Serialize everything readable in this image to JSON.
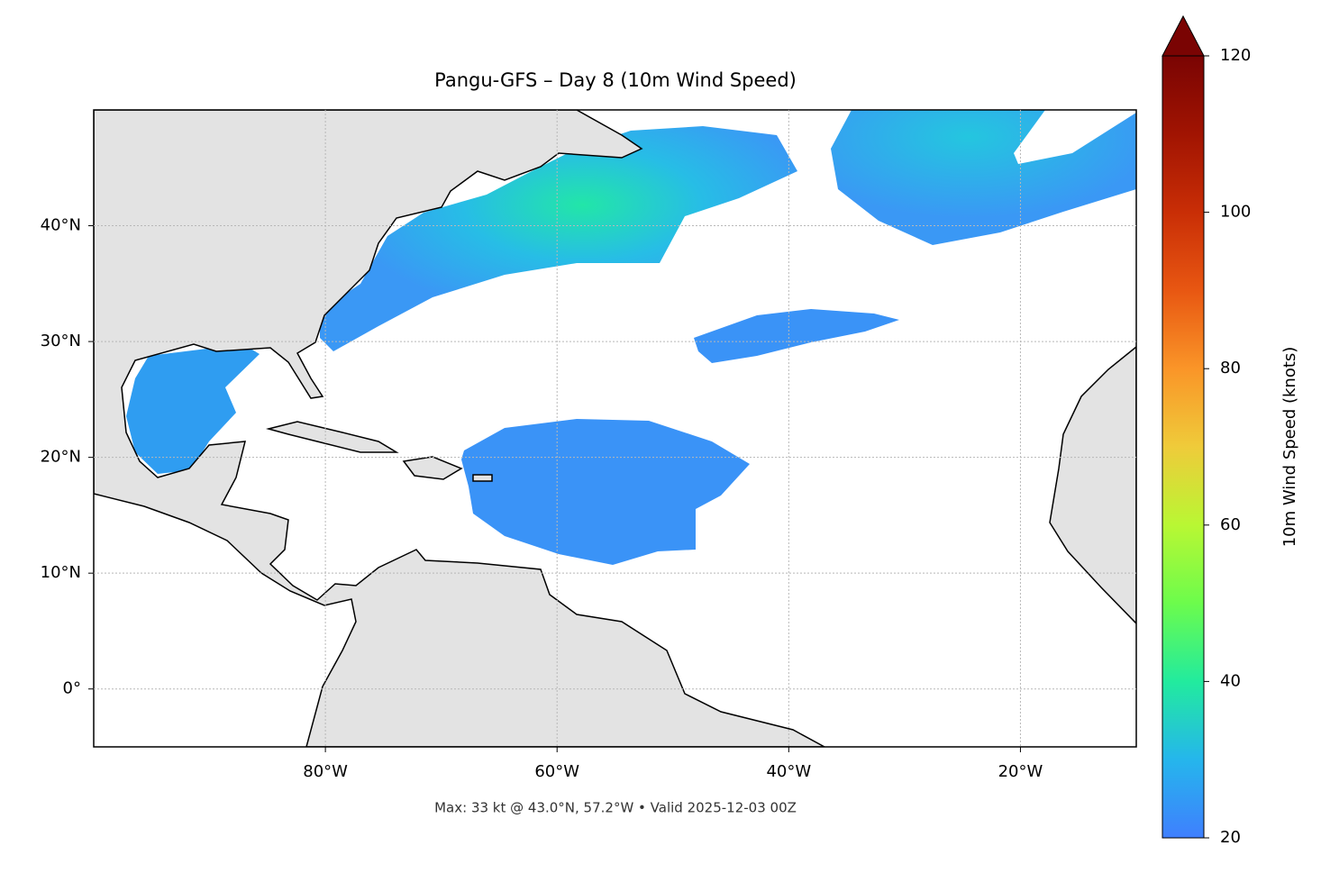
{
  "chart_data": {
    "type": "map",
    "title": "Pangu-GFS – Day 8 (10m Wind Speed)",
    "annotation": "Max: 33 kt @ 43.0°N, 57.2°W • Valid 2025-12-03 00Z",
    "xlim": [
      -100,
      -10
    ],
    "ylim": [
      -5,
      50
    ],
    "xticks": [
      {
        "value": -80,
        "label": "80°W"
      },
      {
        "value": -60,
        "label": "60°W"
      },
      {
        "value": -40,
        "label": "40°W"
      },
      {
        "value": -20,
        "label": "20°W"
      }
    ],
    "yticks": [
      {
        "value": 0,
        "label": "0°"
      },
      {
        "value": 10,
        "label": "10°N"
      },
      {
        "value": 20,
        "label": "20°N"
      },
      {
        "value": 30,
        "label": "30°N"
      },
      {
        "value": 40,
        "label": "40°N"
      }
    ],
    "grid": true,
    "colorbar": {
      "label": "10m Wind Speed (knots)",
      "lim": [
        20,
        120
      ],
      "ticks": [
        20,
        40,
        60,
        80,
        100,
        120
      ],
      "extend": "max"
    }
  }
}
